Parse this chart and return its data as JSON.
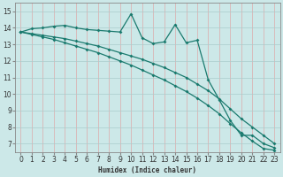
{
  "xlabel": "Humidex (Indice chaleur)",
  "bg_color": "#cce8e8",
  "grid_color": "#aacccc",
  "line_color": "#1a7a6e",
  "xlim": [
    -0.5,
    23.5
  ],
  "ylim": [
    6.5,
    15.5
  ],
  "xticks": [
    0,
    1,
    2,
    3,
    4,
    5,
    6,
    7,
    8,
    9,
    10,
    11,
    12,
    13,
    14,
    15,
    16,
    17,
    18,
    19,
    20,
    21,
    22,
    23
  ],
  "yticks": [
    7,
    8,
    9,
    10,
    11,
    12,
    13,
    14,
    15
  ],
  "line_zigzag_x": [
    0,
    1,
    2,
    3,
    4,
    5,
    6,
    7,
    8,
    9,
    10,
    11,
    12,
    13,
    14,
    15,
    16,
    17,
    18,
    19,
    20,
    21,
    22,
    23
  ],
  "line_zigzag_y": [
    13.75,
    13.95,
    14.0,
    14.1,
    14.15,
    14.0,
    13.9,
    13.85,
    13.8,
    13.75,
    14.85,
    13.4,
    13.05,
    13.15,
    14.2,
    13.1,
    13.25,
    10.85,
    9.65,
    8.4,
    7.5,
    7.5,
    7.0,
    6.75
  ],
  "line_mid_x": [
    0,
    1,
    2,
    3,
    4,
    5,
    6,
    7,
    8,
    9,
    10,
    11,
    12,
    13,
    14,
    15,
    16,
    17,
    18,
    19,
    20,
    21,
    22,
    23
  ],
  "line_mid_y": [
    13.75,
    13.65,
    13.55,
    13.45,
    13.35,
    13.2,
    13.05,
    12.9,
    12.7,
    12.5,
    12.3,
    12.1,
    11.85,
    11.6,
    11.3,
    11.0,
    10.6,
    10.2,
    9.7,
    9.1,
    8.5,
    8.0,
    7.5,
    7.0
  ],
  "line_bot_x": [
    0,
    1,
    2,
    3,
    4,
    5,
    6,
    7,
    8,
    9,
    10,
    11,
    12,
    13,
    14,
    15,
    16,
    17,
    18,
    19,
    20,
    21,
    22,
    23
  ],
  "line_bot_y": [
    13.75,
    13.6,
    13.45,
    13.3,
    13.1,
    12.9,
    12.7,
    12.5,
    12.25,
    12.0,
    11.75,
    11.45,
    11.15,
    10.85,
    10.5,
    10.15,
    9.75,
    9.3,
    8.8,
    8.2,
    7.65,
    7.15,
    6.7,
    6.6
  ]
}
